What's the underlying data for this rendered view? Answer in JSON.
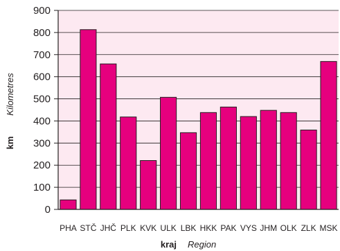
{
  "chart_data": {
    "type": "bar",
    "categories": [
      "PHA",
      "STČ",
      "JHČ",
      "PLK",
      "KVK",
      "ULK",
      "LBK",
      "HKK",
      "PAK",
      "VYS",
      "JHM",
      "OLK",
      "ZLK",
      "MSK"
    ],
    "values": [
      43,
      813,
      658,
      418,
      221,
      507,
      347,
      438,
      463,
      420,
      448,
      438,
      359,
      669
    ],
    "ylim": [
      0,
      900
    ],
    "yticks": [
      0,
      100,
      200,
      300,
      400,
      500,
      600,
      700,
      800,
      900
    ],
    "ylabel": "km",
    "ylabel_secondary": "Kilometres",
    "xlabel": "kraj",
    "xlabel_secondary": "Region",
    "grid": true,
    "colors": {
      "bar": "#e6007e",
      "plot_background": "#fde9f1",
      "axis": "#231f20",
      "grid": "#231f20"
    }
  }
}
